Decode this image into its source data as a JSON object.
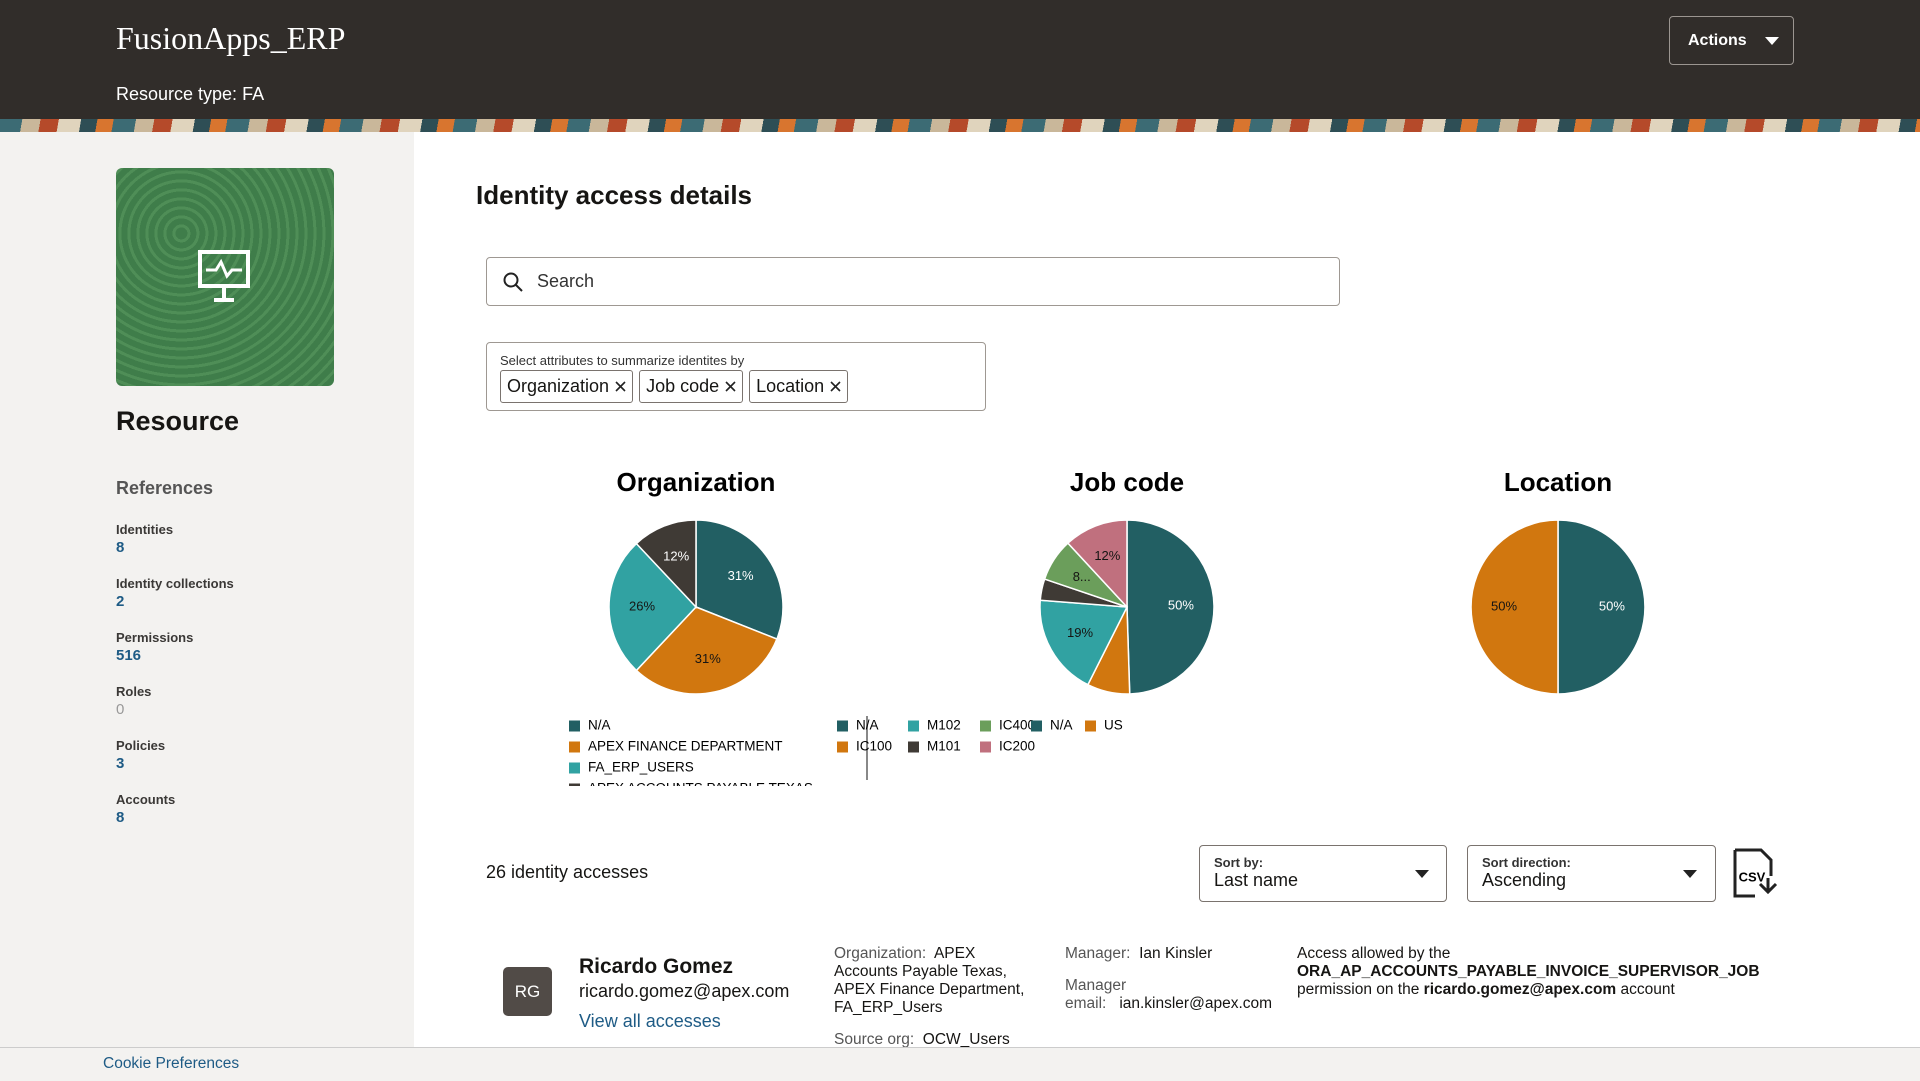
{
  "header": {
    "title": "FusionApps_ERP",
    "resource_type_label": "Resource type:",
    "resource_type": "FA",
    "actions": "Actions"
  },
  "sidebar": {
    "title": "Resource",
    "references_title": "References",
    "references": [
      {
        "label": "Identities",
        "value": 8
      },
      {
        "label": "Identity collections",
        "value": 2
      },
      {
        "label": "Permissions",
        "value": 516
      },
      {
        "label": "Roles",
        "value": 0
      },
      {
        "label": "Policies",
        "value": 3
      },
      {
        "label": "Accounts",
        "value": 8
      }
    ]
  },
  "main": {
    "title": "Identity access details",
    "search_placeholder": "Search",
    "attributes": {
      "label": "Select attributes to summarize identites by",
      "chips": [
        "Organization",
        "Job code",
        "Location"
      ]
    }
  },
  "chart_data": [
    {
      "type": "pie",
      "title": "Organization",
      "categories": [
        "N/A",
        "APEX FINANCE DEPARTMENT",
        "FA_ERP_USERS",
        "APEX ACCOUNTS PAYABLE TEXAS"
      ],
      "values": [
        31,
        31,
        26,
        12
      ],
      "value_labels": [
        "31%",
        "31%",
        "26%",
        "12%"
      ],
      "colors": [
        "#225f63",
        "#d1770f",
        "#31a2a2",
        "#3f3a35"
      ]
    },
    {
      "type": "pie",
      "title": "Job code",
      "categories": [
        "N/A",
        "IC100",
        "M102",
        "M101",
        "IC400",
        "IC200"
      ],
      "values": [
        50,
        8,
        19,
        4,
        8,
        12
      ],
      "value_labels": [
        "50%",
        null,
        "19%",
        null,
        "8...",
        "12%"
      ],
      "colors": [
        "#225f63",
        "#d1770f",
        "#31a2a2",
        "#3f3a35",
        "#6b9e5b",
        "#c0707e"
      ]
    },
    {
      "type": "pie",
      "title": "Location",
      "categories": [
        "N/A",
        "US"
      ],
      "values": [
        50,
        50
      ],
      "value_labels": [
        "50%",
        "50%"
      ],
      "colors": [
        "#225f63",
        "#d1770f"
      ]
    }
  ],
  "list": {
    "count": "26 identity accesses",
    "sort_by": {
      "label": "Sort by:",
      "value": "Last name"
    },
    "sort_direction": {
      "label": "Sort direction:",
      "value": "Ascending"
    },
    "csv": "CSV"
  },
  "records": [
    {
      "initials": "RG",
      "name": "Ricardo Gomez",
      "email": "ricardo.gomez@apex.com",
      "link": "View all accesses",
      "organization_label": "Organization:",
      "organization": "APEX Accounts Payable Texas, APEX Finance Department, FA_ERP_Users",
      "source_org_label": "Source org:",
      "source_org": "OCW_Users",
      "manager_label": "Manager:",
      "manager": "Ian Kinsler",
      "manager_email_label": "Manager email:",
      "manager_email": "ian.kinsler@apex.com",
      "access": [
        "Access allowed by the",
        "ORA_AP_ACCOUNTS_PAYABLE_INVOICE_SUPERVISOR_JOB",
        "permission on the",
        "ricardo.gomez@apex.com",
        "account"
      ]
    }
  ],
  "footer": {
    "cookie": "Cookie Preferences"
  }
}
